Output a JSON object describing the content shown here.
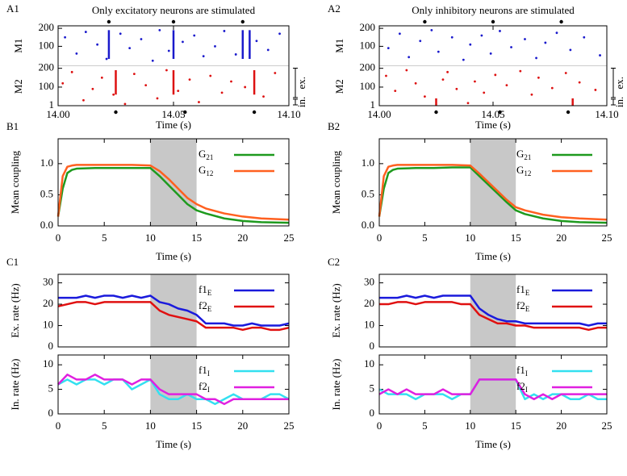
{
  "chart_data": [
    {
      "type": "raster",
      "panel": "A1",
      "title": "Only excitatory neurons are stimulated",
      "xlabel": "Time (s)",
      "xlim": [
        14.0,
        14.1
      ],
      "xticks": [
        {
          "value": 14.0,
          "label": "14.00"
        },
        {
          "value": 14.05,
          "label": "14.05"
        },
        {
          "value": 14.1,
          "label": "14.10"
        }
      ],
      "markers_top": [
        14.022,
        14.05,
        14.08
      ],
      "markers_bottom": [
        14.025,
        14.055,
        14.085
      ],
      "populations": [
        {
          "name": "M1",
          "color": "#1a1acc",
          "ylim": [
            1,
            205
          ],
          "yticks": [
            100,
            200
          ],
          "x": [
            14.003,
            14.008,
            14.012,
            14.017,
            14.021,
            14.027,
            14.031,
            14.036,
            14.041,
            14.044,
            14.048,
            14.054,
            14.059,
            14.063,
            14.068,
            14.072,
            14.077,
            14.086,
            14.091,
            14.096
          ],
          "y": [
            150,
            60,
            180,
            110,
            30,
            170,
            90,
            140,
            20,
            190,
            75,
            125,
            160,
            45,
            100,
            185,
            55,
            130,
            80,
            170
          ],
          "bursts": [
            14.022,
            14.05,
            14.08,
            14.083
          ],
          "burst_range": [
            30,
            190
          ]
        },
        {
          "name": "M2",
          "color": "#dd1111",
          "ylim": [
            1,
            205
          ],
          "yticks": [
            1,
            100,
            200
          ],
          "x": [
            14.002,
            14.006,
            14.011,
            14.015,
            14.019,
            14.024,
            14.029,
            14.033,
            14.038,
            14.043,
            14.047,
            14.052,
            14.057,
            14.061,
            14.066,
            14.071,
            14.075,
            14.081,
            14.089,
            14.094
          ],
          "y": [
            120,
            180,
            30,
            90,
            150,
            60,
            10,
            170,
            110,
            40,
            190,
            80,
            140,
            20,
            160,
            70,
            130,
            100,
            50,
            175
          ],
          "bursts": [
            14.025,
            14.05,
            14.085
          ],
          "burst_range": [
            60,
            190
          ],
          "brackets": [
            {
              "label": "ex.",
              "range": [
                40,
                205
              ]
            },
            {
              "label": "in.",
              "range": [
                1,
                40
              ]
            }
          ]
        }
      ]
    },
    {
      "type": "raster",
      "panel": "A2",
      "title": "Only inhibitory neurons are stimulated",
      "xlabel": "Time (s)",
      "xlim": [
        14.0,
        14.1
      ],
      "xticks": [
        {
          "value": 14.0,
          "label": "14.00"
        },
        {
          "value": 14.05,
          "label": "14.05"
        },
        {
          "value": 14.1,
          "label": "14.10"
        }
      ],
      "markers_top": [
        14.02,
        14.05,
        14.08
      ],
      "markers_bottom": [
        14.025,
        14.053,
        14.083
      ],
      "populations": [
        {
          "name": "M1",
          "color": "#1a1acc",
          "ylim": [
            1,
            205
          ],
          "yticks": [
            100,
            200
          ],
          "x": [
            14.004,
            14.009,
            14.013,
            14.018,
            14.023,
            14.026,
            14.032,
            14.037,
            14.04,
            14.045,
            14.049,
            14.053,
            14.058,
            14.064,
            14.069,
            14.073,
            14.078,
            14.084,
            14.09,
            14.097
          ],
          "y": [
            90,
            170,
            40,
            130,
            190,
            70,
            150,
            25,
            110,
            160,
            60,
            185,
            95,
            140,
            35,
            120,
            175,
            80,
            150,
            50
          ],
          "bursts": [],
          "burst_range": [
            30,
            190
          ]
        },
        {
          "name": "M2",
          "color": "#dd1111",
          "ylim": [
            1,
            205
          ],
          "yticks": [
            1,
            100,
            200
          ],
          "x": [
            14.003,
            14.007,
            14.012,
            14.016,
            14.02,
            14.028,
            14.03,
            14.034,
            14.039,
            14.042,
            14.046,
            14.051,
            14.056,
            14.062,
            14.067,
            14.07,
            14.076,
            14.082,
            14.088,
            14.095
          ],
          "y": [
            160,
            80,
            190,
            120,
            50,
            140,
            180,
            90,
            15,
            130,
            70,
            165,
            110,
            185,
            60,
            150,
            95,
            175,
            125,
            85
          ],
          "bursts": [
            14.025,
            14.085
          ],
          "burst_range": [
            1,
            40
          ],
          "brackets": [
            {
              "label": "ex.",
              "range": [
                40,
                205
              ]
            },
            {
              "label": "in.",
              "range": [
                1,
                40
              ]
            }
          ]
        }
      ]
    },
    {
      "type": "line",
      "panel": "B1",
      "ylabel": "Mean coupling",
      "xlabel": "Time (s)",
      "shade": [
        10,
        15
      ],
      "xlim": [
        0,
        25
      ],
      "xticks": [
        0,
        5,
        10,
        15,
        20,
        25
      ],
      "ylim": [
        0,
        1.4
      ],
      "yticks": [
        {
          "value": 0,
          "label": "0.0"
        },
        {
          "value": 0.5,
          "label": "0.5"
        },
        {
          "value": 1,
          "label": "1.0"
        }
      ],
      "x": [
        0,
        0.5,
        1,
        1.5,
        2,
        4,
        6,
        8,
        10,
        11,
        12,
        13,
        14,
        15,
        16,
        18,
        20,
        22,
        25
      ],
      "series": [
        {
          "name": "G",
          "subscript": "21",
          "color": "#1e9a1e",
          "values": [
            0.15,
            0.6,
            0.85,
            0.9,
            0.92,
            0.93,
            0.93,
            0.93,
            0.93,
            0.8,
            0.65,
            0.5,
            0.35,
            0.25,
            0.2,
            0.12,
            0.08,
            0.06,
            0.05
          ]
        },
        {
          "name": "G",
          "subscript": "12",
          "color": "#ff6020",
          "values": [
            0.15,
            0.8,
            0.95,
            0.97,
            0.98,
            0.98,
            0.98,
            0.98,
            0.97,
            0.88,
            0.75,
            0.6,
            0.45,
            0.35,
            0.28,
            0.2,
            0.15,
            0.12,
            0.1
          ]
        }
      ]
    },
    {
      "type": "line",
      "panel": "B2",
      "ylabel": "Mean coupling",
      "xlabel": "Time (s)",
      "shade": [
        10,
        15
      ],
      "xlim": [
        0,
        25
      ],
      "xticks": [
        0,
        5,
        10,
        15,
        20,
        25
      ],
      "ylim": [
        0,
        1.4
      ],
      "yticks": [
        {
          "value": 0,
          "label": "0.0"
        },
        {
          "value": 0.5,
          "label": "0.5"
        },
        {
          "value": 1,
          "label": "1.0"
        }
      ],
      "x": [
        0,
        0.5,
        1,
        1.5,
        2,
        4,
        6,
        8,
        10,
        11,
        12,
        13,
        14,
        15,
        16,
        18,
        20,
        22,
        25
      ],
      "series": [
        {
          "name": "G",
          "subscript": "21",
          "color": "#1e9a1e",
          "values": [
            0.15,
            0.6,
            0.85,
            0.9,
            0.92,
            0.93,
            0.93,
            0.94,
            0.94,
            0.8,
            0.66,
            0.52,
            0.38,
            0.25,
            0.19,
            0.12,
            0.08,
            0.06,
            0.05
          ]
        },
        {
          "name": "G",
          "subscript": "12",
          "color": "#ff6020",
          "values": [
            0.15,
            0.8,
            0.95,
            0.97,
            0.98,
            0.98,
            0.98,
            0.98,
            0.97,
            0.84,
            0.7,
            0.56,
            0.42,
            0.3,
            0.25,
            0.18,
            0.14,
            0.12,
            0.1
          ]
        }
      ]
    },
    {
      "type": "line",
      "panel": "C1",
      "ylabel": "Ex. rate (Hz)",
      "shade": [
        10,
        15
      ],
      "xlim": [
        0,
        25
      ],
      "ylim": [
        0,
        34
      ],
      "yticks": [
        0,
        10,
        20,
        30
      ],
      "x": [
        0,
        1,
        2,
        3,
        4,
        5,
        6,
        7,
        8,
        9,
        10,
        11,
        12,
        13,
        14,
        15,
        16,
        17,
        18,
        19,
        20,
        21,
        22,
        23,
        24,
        25
      ],
      "series": [
        {
          "name": "f1",
          "subscript": "E",
          "color": "#1a1adc",
          "values": [
            23,
            23,
            23,
            24,
            23,
            24,
            24,
            23,
            24,
            23,
            24,
            21,
            20,
            18,
            17,
            15,
            11,
            11,
            11,
            10,
            10,
            11,
            10,
            10,
            10,
            11
          ]
        },
        {
          "name": "f2",
          "subscript": "E",
          "color": "#e01010",
          "values": [
            19,
            20,
            21,
            21,
            20,
            21,
            21,
            21,
            21,
            21,
            21,
            17,
            15,
            14,
            13,
            12,
            9,
            9,
            9,
            9,
            8,
            9,
            9,
            8,
            8,
            9
          ]
        }
      ]
    },
    {
      "type": "line",
      "ylabel": "In. rate (Hz)",
      "xlabel": "Time (s)",
      "shade": [
        10,
        15
      ],
      "xlim": [
        0,
        25
      ],
      "xticks": [
        0,
        5,
        10,
        15,
        20,
        25
      ],
      "ylim": [
        0,
        12
      ],
      "yticks": [
        0,
        5,
        10
      ],
      "x": [
        0,
        1,
        2,
        3,
        4,
        5,
        6,
        7,
        8,
        9,
        10,
        11,
        12,
        13,
        14,
        15,
        16,
        17,
        18,
        19,
        20,
        21,
        22,
        23,
        24,
        25
      ],
      "series": [
        {
          "name": "f1",
          "subscript": "I",
          "color": "#33e0f0",
          "values": [
            6,
            7,
            6,
            7,
            7,
            6,
            7,
            7,
            5,
            6,
            7,
            4,
            3,
            3,
            4,
            3,
            3,
            2,
            3,
            4,
            3,
            3,
            3,
            4,
            4,
            3
          ]
        },
        {
          "name": "f2",
          "subscript": "I",
          "color": "#e020e0",
          "values": [
            6,
            8,
            7,
            7,
            8,
            7,
            7,
            7,
            6,
            7,
            7,
            5,
            4,
            4,
            4,
            4,
            3,
            3,
            2,
            3,
            3,
            3,
            3,
            3,
            3,
            3
          ]
        }
      ]
    },
    {
      "type": "line",
      "panel": "C2",
      "ylabel": "Ex. rate (Hz)",
      "shade": [
        10,
        15
      ],
      "xlim": [
        0,
        25
      ],
      "ylim": [
        0,
        34
      ],
      "yticks": [
        0,
        10,
        20,
        30
      ],
      "x": [
        0,
        1,
        2,
        3,
        4,
        5,
        6,
        7,
        8,
        9,
        10,
        11,
        12,
        13,
        14,
        15,
        16,
        17,
        18,
        19,
        20,
        21,
        22,
        23,
        24,
        25
      ],
      "series": [
        {
          "name": "f1",
          "subscript": "E",
          "color": "#1a1adc",
          "values": [
            23,
            23,
            23,
            24,
            23,
            24,
            23,
            24,
            24,
            24,
            24,
            18,
            15,
            13,
            12,
            12,
            11,
            11,
            11,
            11,
            11,
            11,
            11,
            10,
            11,
            11
          ]
        },
        {
          "name": "f2",
          "subscript": "E",
          "color": "#e01010",
          "values": [
            20,
            20,
            21,
            21,
            20,
            21,
            21,
            21,
            21,
            20,
            20,
            15,
            13,
            11,
            11,
            10,
            10,
            9,
            9,
            9,
            9,
            9,
            9,
            8,
            9,
            9
          ]
        }
      ]
    },
    {
      "type": "line",
      "ylabel": "In. rate (Hz)",
      "xlabel": "Time (s)",
      "shade": [
        10,
        15
      ],
      "xlim": [
        0,
        25
      ],
      "xticks": [
        0,
        5,
        10,
        15,
        20,
        25
      ],
      "ylim": [
        0,
        12
      ],
      "yticks": [
        0,
        5,
        10
      ],
      "x": [
        0,
        1,
        2,
        3,
        4,
        5,
        6,
        7,
        8,
        9,
        10,
        11,
        12,
        13,
        14,
        15,
        16,
        17,
        18,
        19,
        20,
        21,
        22,
        23,
        24,
        25
      ],
      "series": [
        {
          "name": "f1",
          "subscript": "I",
          "color": "#33e0f0",
          "values": [
            5,
            4,
            4,
            4,
            3,
            4,
            4,
            4,
            3,
            4,
            4,
            7,
            7,
            7,
            7,
            7,
            3,
            4,
            3,
            4,
            4,
            3,
            3,
            4,
            3,
            3
          ]
        },
        {
          "name": "f2",
          "subscript": "I",
          "color": "#e020e0",
          "values": [
            4,
            5,
            4,
            5,
            4,
            4,
            4,
            5,
            4,
            4,
            4,
            7,
            7,
            7,
            7,
            7,
            4,
            3,
            4,
            3,
            4,
            4,
            4,
            4,
            4,
            4
          ]
        }
      ]
    }
  ]
}
